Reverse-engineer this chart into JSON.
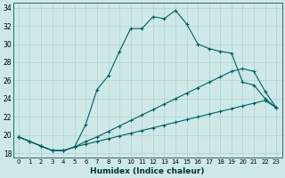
{
  "xlabel": "Humidex (Indice chaleur)",
  "xlim": [
    -0.5,
    23.5
  ],
  "ylim": [
    17.5,
    34.5
  ],
  "xticks": [
    0,
    1,
    2,
    3,
    4,
    5,
    6,
    7,
    8,
    9,
    10,
    11,
    12,
    13,
    14,
    15,
    16,
    17,
    18,
    19,
    20,
    21,
    22,
    23
  ],
  "yticks": [
    18,
    20,
    22,
    24,
    26,
    28,
    30,
    32,
    34
  ],
  "background_color": "#cee8e8",
  "grid_color": "#b0d0d0",
  "line_color": "#006060",
  "line1_y": [
    19.8,
    19.3,
    18.8,
    18.3,
    18.3,
    18.7,
    21.2,
    25.0,
    26.5,
    29.2,
    31.7,
    31.7,
    33.0,
    32.8,
    33.7,
    32.2,
    30.0,
    29.5,
    29.2,
    29.0,
    25.8,
    25.5,
    24.0,
    23.0
  ],
  "line2_y": [
    19.8,
    19.3,
    18.8,
    18.3,
    18.3,
    18.7,
    19.3,
    19.8,
    20.4,
    21.0,
    21.6,
    22.2,
    22.8,
    23.4,
    24.0,
    24.6,
    25.2,
    25.8,
    26.4,
    27.0,
    27.3,
    27.0,
    24.8,
    23.0
  ],
  "line3_y": [
    19.8,
    19.3,
    18.8,
    18.3,
    18.3,
    18.7,
    19.0,
    19.3,
    19.6,
    19.9,
    20.2,
    20.5,
    20.8,
    21.1,
    21.4,
    21.7,
    22.0,
    22.3,
    22.6,
    22.9,
    23.2,
    23.5,
    23.8,
    23.0
  ]
}
